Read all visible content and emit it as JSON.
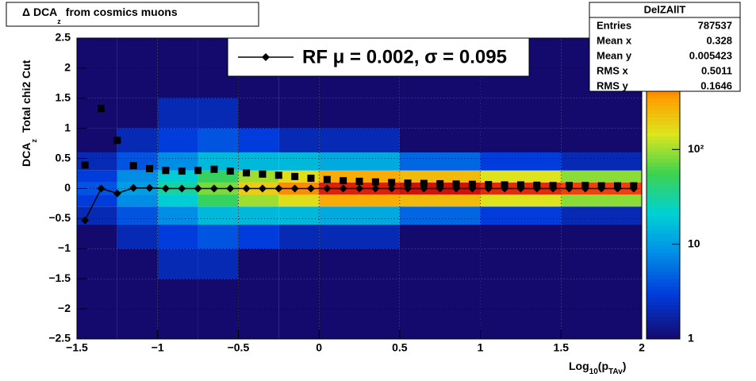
{
  "chart_data": {
    "type": "heatmap",
    "title": [
      "Δ DCA",
      "z",
      "from cosmics muons"
    ],
    "x_label": [
      "Log",
      "10",
      "(p",
      "TAv",
      ")"
    ],
    "y_label": [
      "DCA",
      "z",
      "Total chi2 Cut"
    ],
    "xlim": [
      -1.5,
      2
    ],
    "ylim": [
      -2.5,
      2.5
    ],
    "xticks": [
      {
        "value": -1.5,
        "label": "−1.5"
      },
      {
        "value": -1,
        "label": "−1"
      },
      {
        "value": -0.5,
        "label": "−0.5"
      },
      0,
      0.5,
      1,
      1.5,
      2
    ],
    "yticks": [
      {
        "value": -2.5,
        "label": "−2.5"
      },
      {
        "value": -2,
        "label": "−2"
      },
      {
        "value": -1.5,
        "label": "−1.5"
      },
      {
        "value": -1,
        "label": "−1"
      },
      {
        "value": -0.5,
        "label": "−0.5"
      },
      0,
      0.5,
      1,
      1.5,
      2,
      2.5
    ],
    "grid": true,
    "z_log": true,
    "zlim": [
      1,
      1500
    ],
    "zticks": [
      1,
      10,
      {
        "value": 100,
        "label": "10²"
      }
    ],
    "x_edges": [
      -1.5,
      -1.25,
      -1,
      -0.75,
      -0.5,
      -0.25,
      0,
      0.5,
      1,
      1.5,
      2
    ],
    "y_edges": [
      -2.5,
      -1.5,
      -1,
      -0.6,
      -0.3,
      -0.1,
      0.1,
      0.3,
      0.6,
      1,
      1.5,
      2.5
    ],
    "z": [
      [
        1,
        1,
        1,
        1,
        1,
        1,
        1,
        1,
        1,
        1
      ],
      [
        1,
        1,
        2,
        2,
        1,
        1,
        1,
        1,
        1,
        1
      ],
      [
        1,
        2,
        3,
        4,
        3,
        2,
        2,
        1,
        1,
        1
      ],
      [
        2,
        4,
        8,
        15,
        15,
        15,
        12,
        5,
        3,
        2
      ],
      [
        3,
        8,
        20,
        50,
        100,
        160,
        300,
        250,
        150,
        90
      ],
      [
        4,
        10,
        30,
        80,
        200,
        400,
        1000,
        1200,
        900,
        700
      ],
      [
        3,
        8,
        20,
        50,
        100,
        160,
        300,
        250,
        150,
        90
      ],
      [
        2,
        4,
        8,
        15,
        15,
        15,
        12,
        5,
        3,
        2
      ],
      [
        1,
        2,
        3,
        4,
        3,
        2,
        2,
        1,
        1,
        1
      ],
      [
        1,
        1,
        2,
        2,
        1,
        1,
        1,
        1,
        1,
        1
      ],
      [
        1,
        1,
        1,
        1,
        1,
        1,
        1,
        1,
        1,
        1
      ]
    ],
    "x": [
      -1.45,
      -1.35,
      -1.25,
      -1.15,
      -1.05,
      -0.95,
      -0.85,
      -0.75,
      -0.65,
      -0.55,
      -0.45,
      -0.35,
      -0.25,
      -0.15,
      -0.05,
      0.05,
      0.15,
      0.25,
      0.35,
      0.45,
      0.55,
      0.65,
      0.75,
      0.85,
      0.95,
      1.05,
      1.15,
      1.25,
      1.35,
      1.45,
      1.55,
      1.65,
      1.75,
      1.85,
      1.95
    ],
    "series": [
      {
        "name": "RF μ =  0.002, σ =   0.095",
        "color": "#000000",
        "marker": "diamond",
        "values": [
          -0.53,
          0,
          -0.08,
          0.01,
          0.01,
          0,
          0,
          0,
          0,
          0,
          0,
          0,
          0,
          0,
          0,
          0,
          0,
          0,
          0,
          0,
          0,
          0,
          0,
          0,
          0,
          0,
          0,
          0,
          0,
          0,
          0,
          0,
          0,
          0,
          0
        ]
      },
      {
        "color": "#000000",
        "marker": "square",
        "values": [
          0.39,
          1.33,
          0.8,
          0.38,
          0.33,
          0.3,
          0.29,
          0.3,
          0.32,
          0.29,
          0.26,
          0.24,
          0.22,
          0.2,
          0.17,
          0.15,
          0.13,
          0.12,
          0.11,
          0.1,
          0.09,
          0.085,
          0.08,
          0.075,
          0.07,
          0.065,
          0.06,
          0.06,
          0.055,
          0.05,
          0.05,
          0.05,
          0.045,
          0.045,
          0.045
        ]
      }
    ],
    "stats": {
      "title": "DelZAllT",
      "rows": [
        [
          "Entries",
          787537
        ],
        [
          "Mean x",
          0.328
        ],
        [
          "Mean y",
          0.005423
        ],
        [
          "RMS x",
          0.5011
        ],
        [
          "RMS y",
          0.1646
        ]
      ]
    }
  }
}
